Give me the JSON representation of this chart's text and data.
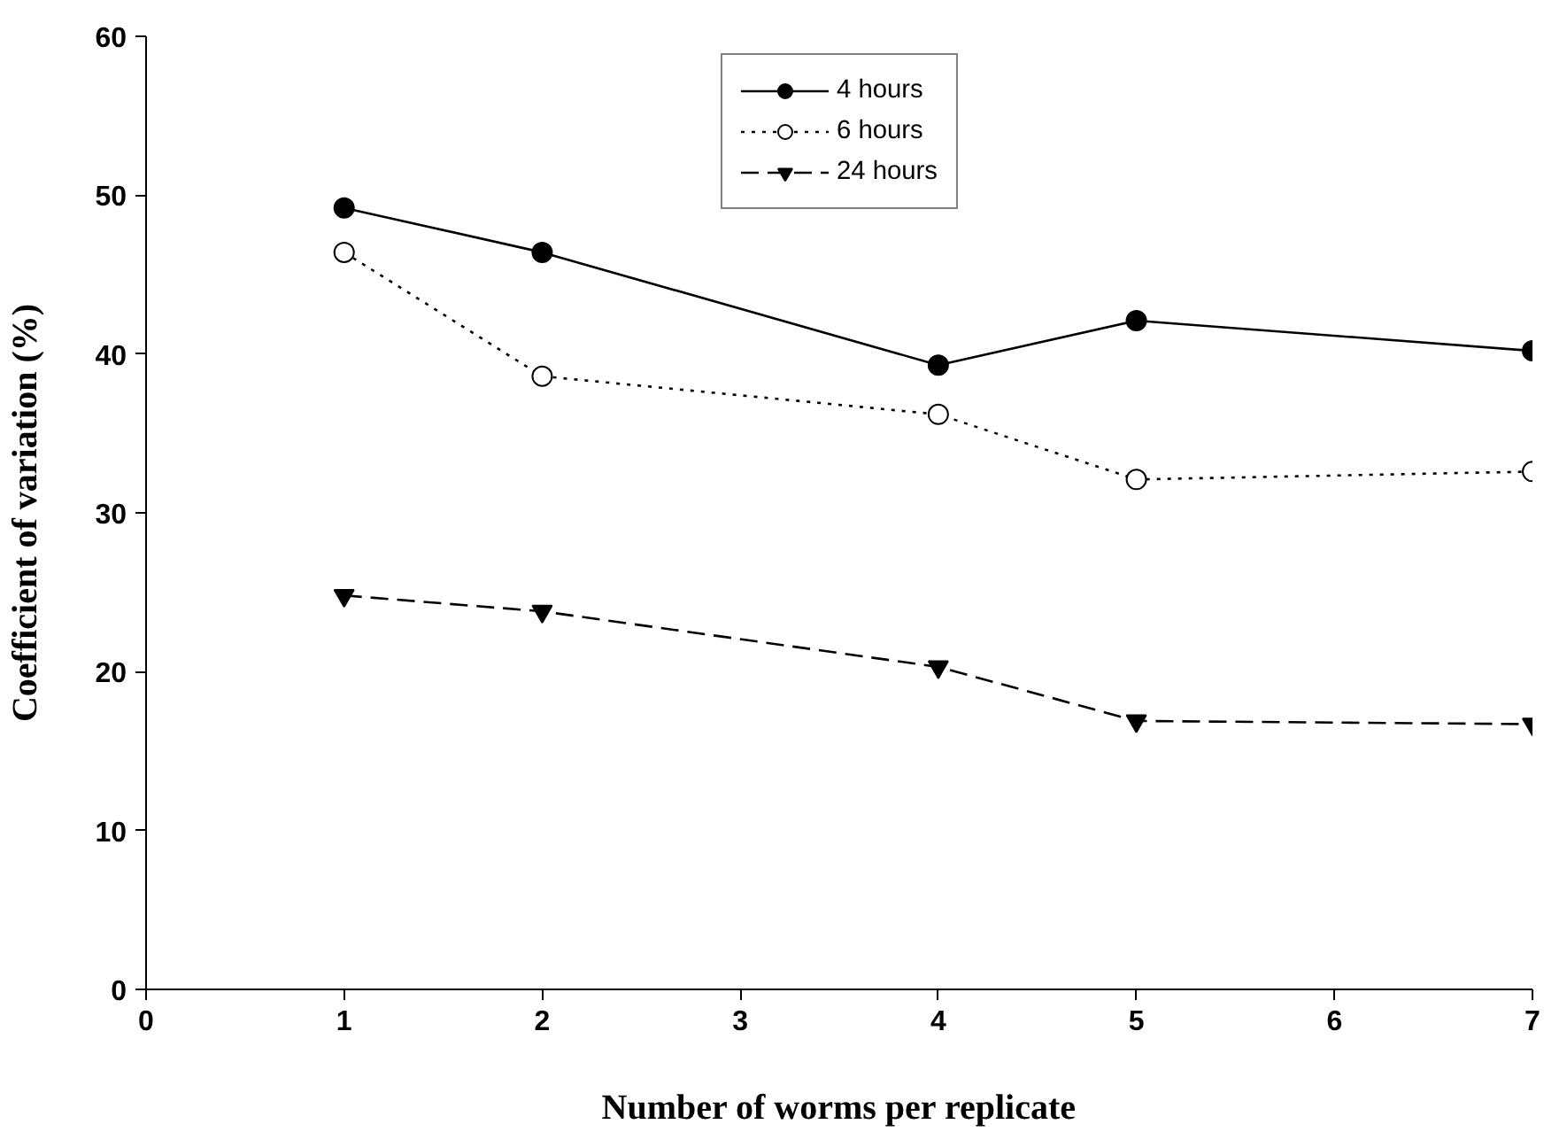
{
  "chart_data": {
    "type": "line",
    "xlabel": "Number of worms per replicate",
    "ylabel": "Coefficient of variation (%)",
    "x": [
      1,
      2,
      4,
      5,
      7
    ],
    "series": [
      {
        "name": "4 hours",
        "color": "#000000",
        "values": [
          49.2,
          46.4,
          39.3,
          42.1,
          40.2
        ],
        "marker": "circle",
        "line_style": "solid"
      },
      {
        "name": "6 hours",
        "color": "#000000",
        "values": [
          46.4,
          38.6,
          36.2,
          32.1,
          32.6
        ],
        "marker": "circle",
        "line_style": "dotted"
      },
      {
        "name": "24 hours",
        "color": "#000000",
        "values": [
          24.8,
          23.8,
          20.3,
          16.9,
          16.7
        ],
        "marker": "triangle",
        "line_style": "dashed"
      }
    ],
    "xlim": [
      0,
      7
    ],
    "ylim": [
      0,
      60
    ],
    "xticks": [
      0,
      1,
      2,
      3,
      4,
      5,
      6,
      7
    ],
    "yticks": [
      0,
      10,
      20,
      30,
      40,
      50,
      60
    ],
    "grid": false,
    "legend": "top"
  }
}
